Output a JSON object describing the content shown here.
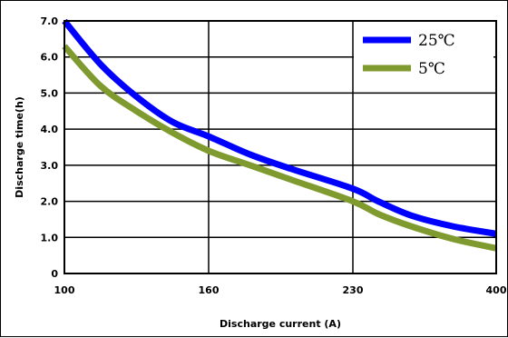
{
  "chart_data": {
    "type": "line",
    "xlabel": "Discharge current (A)",
    "ylabel": "Discharge time(h)",
    "x_ticks": [
      "100",
      "160",
      "230",
      "400"
    ],
    "y_ticks": [
      "0",
      "1.0",
      "2.0",
      "3.0",
      "4.0",
      "5.0",
      "6.0",
      "7.0"
    ],
    "ylim": [
      0,
      7
    ],
    "grid": true,
    "legend_position": "top-right",
    "series": [
      {
        "name": "25℃",
        "color": "#0000ff",
        "points": [
          [
            100,
            7.0
          ],
          [
            115,
            5.8
          ],
          [
            130,
            4.9
          ],
          [
            145,
            4.2
          ],
          [
            160,
            3.8
          ],
          [
            180,
            3.3
          ],
          [
            200,
            2.9
          ],
          [
            230,
            2.35
          ],
          [
            260,
            2.0
          ],
          [
            300,
            1.6
          ],
          [
            350,
            1.3
          ],
          [
            400,
            1.1
          ]
        ]
      },
      {
        "name": "5℃",
        "color": "#7f9a2e",
        "points": [
          [
            100,
            6.3
          ],
          [
            115,
            5.2
          ],
          [
            130,
            4.5
          ],
          [
            145,
            3.9
          ],
          [
            160,
            3.4
          ],
          [
            180,
            3.0
          ],
          [
            200,
            2.6
          ],
          [
            230,
            2.0
          ],
          [
            260,
            1.65
          ],
          [
            300,
            1.3
          ],
          [
            350,
            0.95
          ],
          [
            400,
            0.7
          ]
        ]
      }
    ]
  }
}
